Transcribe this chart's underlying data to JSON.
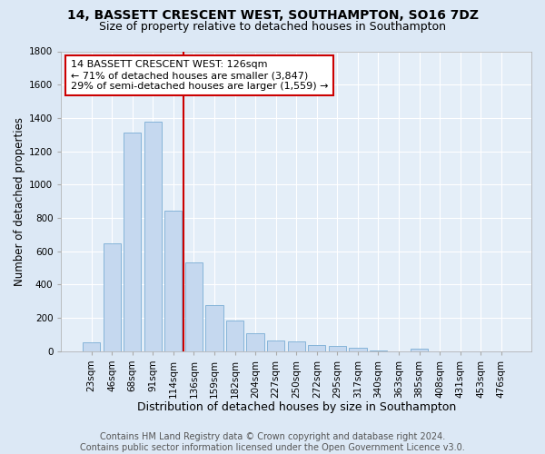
{
  "title": "14, BASSETT CRESCENT WEST, SOUTHAMPTON, SO16 7DZ",
  "subtitle": "Size of property relative to detached houses in Southampton",
  "xlabel": "Distribution of detached houses by size in Southampton",
  "ylabel": "Number of detached properties",
  "categories": [
    "23sqm",
    "46sqm",
    "68sqm",
    "91sqm",
    "114sqm",
    "136sqm",
    "159sqm",
    "182sqm",
    "204sqm",
    "227sqm",
    "250sqm",
    "272sqm",
    "295sqm",
    "317sqm",
    "340sqm",
    "363sqm",
    "385sqm",
    "408sqm",
    "431sqm",
    "453sqm",
    "476sqm"
  ],
  "values": [
    55,
    645,
    1310,
    1375,
    845,
    530,
    275,
    185,
    105,
    65,
    60,
    35,
    30,
    18,
    5,
    0,
    12,
    0,
    0,
    0,
    0
  ],
  "bar_color": "#c5d8ef",
  "bar_edge_color": "#7aadd4",
  "vline_color": "#cc0000",
  "annotation_text": "14 BASSETT CRESCENT WEST: 126sqm\n← 71% of detached houses are smaller (3,847)\n29% of semi-detached houses are larger (1,559) →",
  "annotation_box_color": "#ffffff",
  "annotation_box_edge": "#cc0000",
  "ylim": [
    0,
    1800
  ],
  "yticks": [
    0,
    200,
    400,
    600,
    800,
    1000,
    1200,
    1400,
    1600,
    1800
  ],
  "bg_color": "#dce8f5",
  "plot_bg_color": "#e4eef8",
  "grid_color": "#ffffff",
  "footer": "Contains HM Land Registry data © Crown copyright and database right 2024.\nContains public sector information licensed under the Open Government Licence v3.0.",
  "title_fontsize": 10,
  "subtitle_fontsize": 9,
  "xlabel_fontsize": 9,
  "ylabel_fontsize": 8.5,
  "tick_fontsize": 7.5,
  "annotation_fontsize": 8,
  "footer_fontsize": 7
}
